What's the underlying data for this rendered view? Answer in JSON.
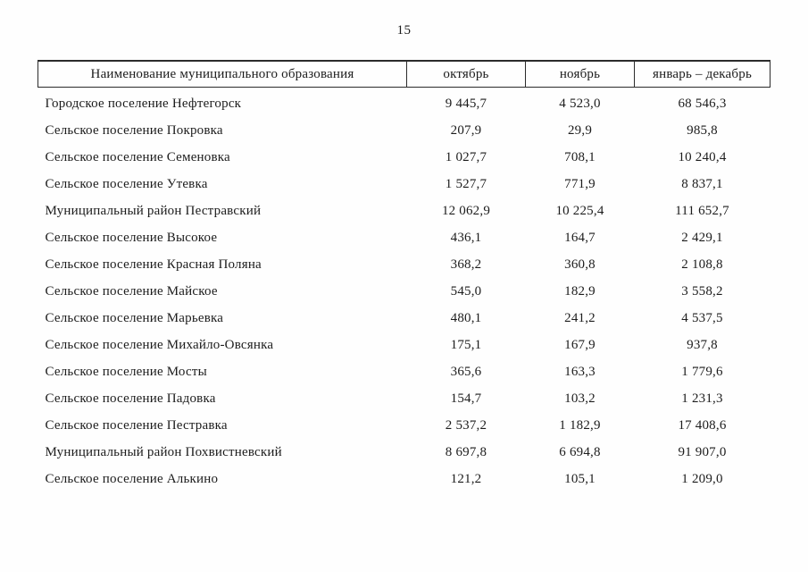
{
  "page": {
    "number": "15"
  },
  "table": {
    "headers": [
      "Наименование муниципального образования",
      "октябрь",
      "ноябрь",
      "январь – декабрь"
    ],
    "rows": [
      {
        "name": "Городское поселение Нефтегорск",
        "values": [
          "9 445,7",
          "4 523,0",
          "68 546,3"
        ]
      },
      {
        "name": "Сельское поселение Покровка",
        "values": [
          "207,9",
          "29,9",
          "985,8"
        ]
      },
      {
        "name": "Сельское поселение Семеновка",
        "values": [
          "1 027,7",
          "708,1",
          "10 240,4"
        ]
      },
      {
        "name": "Сельское поселение Утевка",
        "values": [
          "1 527,7",
          "771,9",
          "8 837,1"
        ]
      },
      {
        "name": "Муниципальный район Пестравский",
        "values": [
          "12 062,9",
          "10 225,4",
          "111 652,7"
        ]
      },
      {
        "name": "Сельское поселение Высокое",
        "values": [
          "436,1",
          "164,7",
          "2 429,1"
        ]
      },
      {
        "name": "Сельское поселение Красная Поляна",
        "values": [
          "368,2",
          "360,8",
          "2 108,8"
        ]
      },
      {
        "name": "Сельское поселение Майское",
        "values": [
          "545,0",
          "182,9",
          "3 558,2"
        ]
      },
      {
        "name": "Сельское поселение Марьевка",
        "values": [
          "480,1",
          "241,2",
          "4 537,5"
        ]
      },
      {
        "name": "Сельское поселение Михайло-Овсянка",
        "values": [
          "175,1",
          "167,9",
          "937,8"
        ]
      },
      {
        "name": "Сельское поселение Мосты",
        "values": [
          "365,6",
          "163,3",
          "1 779,6"
        ]
      },
      {
        "name": "Сельское поселение Падовка",
        "values": [
          "154,7",
          "103,2",
          "1 231,3"
        ]
      },
      {
        "name": "Сельское поселение Пестравка",
        "values": [
          "2 537,2",
          "1 182,9",
          "17 408,6"
        ]
      },
      {
        "name": "Муниципальный район Похвистневский",
        "values": [
          "8 697,8",
          "6 694,8",
          "91 907,0"
        ]
      },
      {
        "name": "Сельское поселение Алькино",
        "values": [
          "121,2",
          "105,1",
          "1 209,0"
        ]
      }
    ]
  }
}
